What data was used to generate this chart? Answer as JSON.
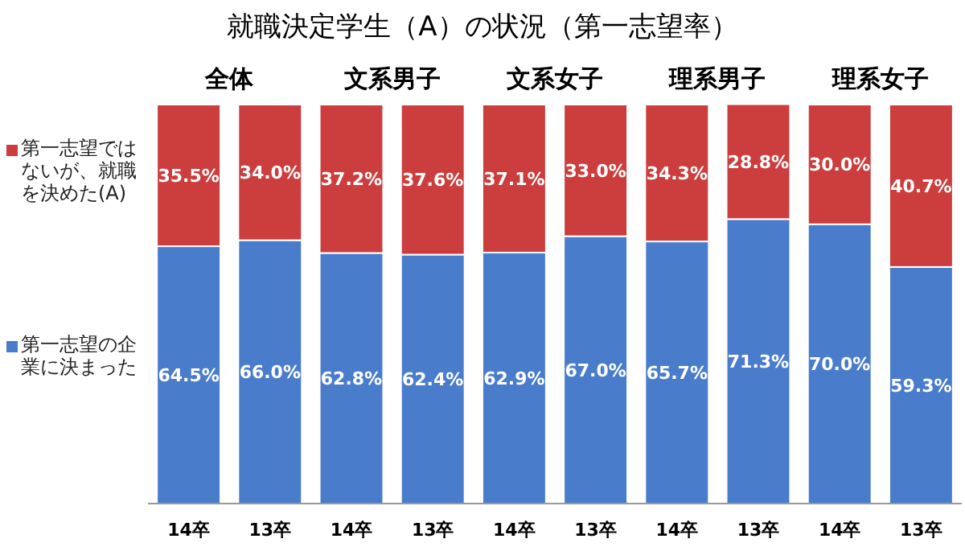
{
  "chart_data": {
    "type": "bar",
    "title": "就職決定学生（A）の状況（第一志望率）",
    "stacked": true,
    "legend": "left",
    "tick_labels": "x",
    "ylim": [
      0,
      100
    ],
    "categories": [
      "14卒",
      "13卒",
      "14卒",
      "13卒",
      "14卒",
      "13卒",
      "14卒",
      "13卒",
      "14卒",
      "13卒"
    ],
    "annotations": [
      "全体",
      "文系男子",
      "文系女子",
      "理系男子",
      "理系女子"
    ],
    "series": [
      {
        "name": "第一志望の企業に決まった",
        "color": "#4a7ccc",
        "values": [
          64.5,
          66.0,
          62.8,
          62.4,
          62.9,
          67.0,
          65.7,
          71.3,
          70.0,
          59.3
        ],
        "value_labels": [
          "64.5%",
          "66.0%",
          "62.8%",
          "62.4%",
          "62.9%",
          "67.0%",
          "65.7%",
          "71.3%",
          "70.0%",
          "59.3%"
        ]
      },
      {
        "name": "第一志望ではないが、就職を決めた(A)",
        "color": "#cc3d3d",
        "values": [
          35.5,
          34.0,
          37.2,
          37.6,
          37.1,
          33.0,
          34.3,
          28.8,
          30.0,
          40.7
        ],
        "value_labels": [
          "35.5%",
          "34.0%",
          "37.2%",
          "37.6%",
          "37.1%",
          "33.0%",
          "34.3%",
          "28.8%",
          "30.0%",
          "40.7%"
        ]
      }
    ]
  }
}
